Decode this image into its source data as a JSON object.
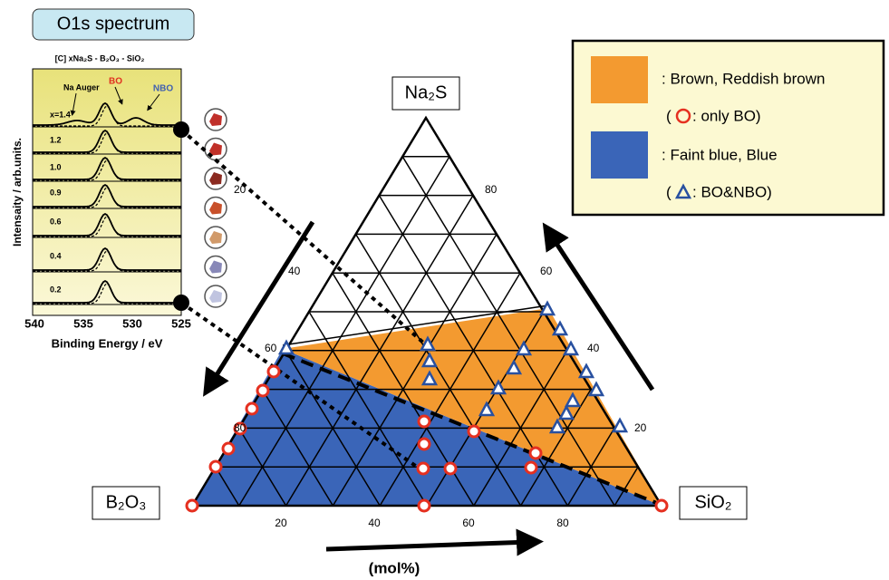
{
  "inset": {
    "title": "O1s spectrum",
    "formula": "[C] xNa₂S - B₂O₃ - SiO₂",
    "annotations": [
      "Na Auger",
      "BO",
      "NBO"
    ],
    "rows": [
      "x=1.4",
      "1.2",
      "1.0",
      "0.9",
      "0.6",
      "0.4",
      "0.2"
    ],
    "y_label": "Intensaity / arb.units.",
    "x_ticks": [
      "540",
      "535",
      "530",
      "525"
    ],
    "x_label": "Binding Energy / eV"
  },
  "ternary": {
    "vertices": [
      "Na₂S",
      "B₂O₃",
      "SiO₂"
    ],
    "left_ticks": [
      "20",
      "40",
      "60",
      "80"
    ],
    "right_ticks": [
      "80",
      "60",
      "40",
      "20"
    ],
    "bottom_ticks": [
      "20",
      "40",
      "60",
      "80"
    ],
    "unit": "(mol%)"
  },
  "legend": {
    "items": [
      {
        "label": ": Brown, Reddish brown",
        "note_open": "(",
        "note": ": only BO)"
      },
      {
        "label": ": Faint blue, Blue",
        "note_open": "(",
        "note": ": BO&NBO)"
      }
    ]
  }
}
